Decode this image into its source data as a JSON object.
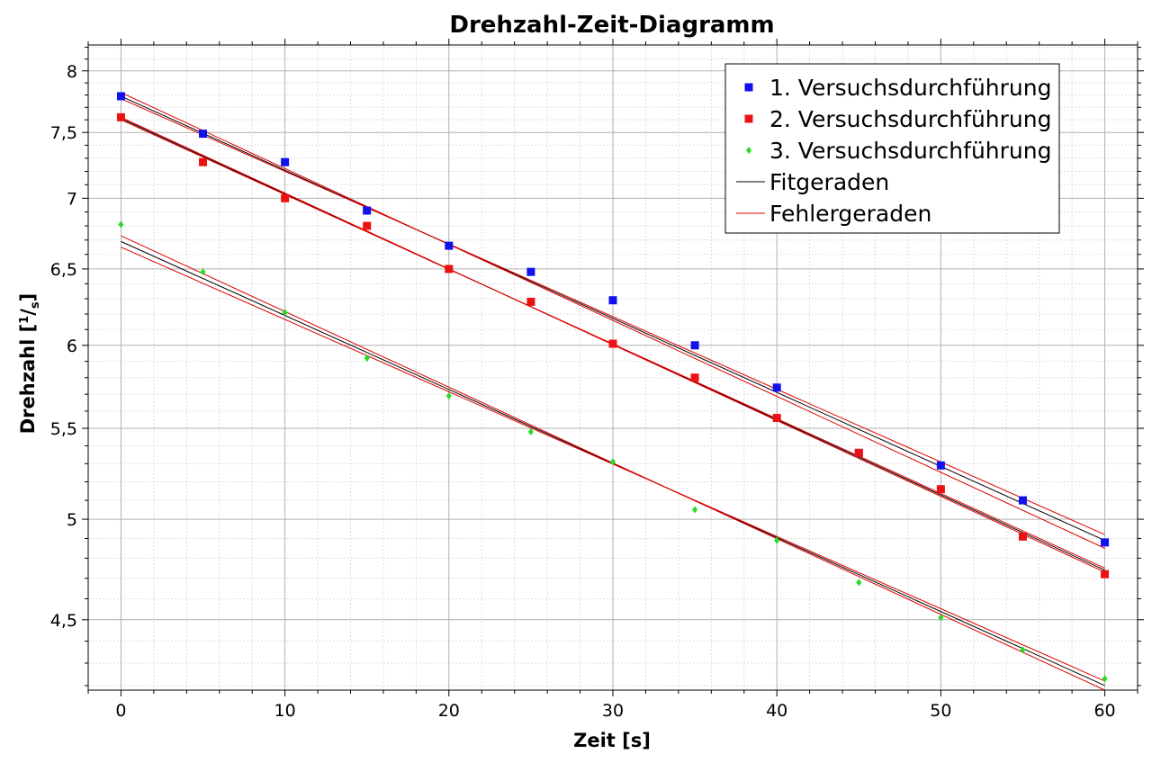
{
  "chart_data": {
    "type": "scatter",
    "title": "Drehzahl-Zeit-Diagramm",
    "xlabel": "Zeit [s]",
    "ylabel": "Drehzahl [",
    "ylabel_sup": "1",
    "ylabel_sep": "/",
    "ylabel_sub": "s",
    "ylabel_end": "]",
    "xlim": [
      -2,
      62
    ],
    "ylim": [
      4.18,
      8.22
    ],
    "yscale": "log",
    "grid": true,
    "legend_position": "top-right",
    "x_ticks": [
      0,
      10,
      20,
      30,
      40,
      50,
      60
    ],
    "x_tick_labels": [
      "0",
      "10",
      "20",
      "30",
      "40",
      "50",
      "60"
    ],
    "y_ticks": [
      4.5,
      5,
      5.5,
      6,
      6.5,
      7,
      7.5,
      8
    ],
    "y_tick_labels": [
      "4,5",
      "5",
      "5,5",
      "6",
      "6,5",
      "7",
      "7,5",
      "8"
    ],
    "x": [
      0,
      5,
      10,
      15,
      20,
      25,
      30,
      35,
      40,
      45,
      50,
      55,
      60
    ],
    "series": [
      {
        "name": "1. Versuchsdurchführung",
        "marker": "square",
        "color": "#1111ee",
        "values": [
          7.79,
          7.49,
          7.27,
          6.91,
          6.66,
          6.48,
          6.29,
          6.0,
          5.74,
          5.36,
          5.29,
          5.1,
          4.88
        ]
      },
      {
        "name": "2. Versuchsdurchführung",
        "marker": "square",
        "color": "#ee1111",
        "values": [
          7.62,
          7.27,
          7.0,
          6.8,
          6.5,
          6.28,
          6.01,
          5.8,
          5.56,
          5.36,
          5.16,
          4.91,
          4.72
        ]
      },
      {
        "name": "3. Versuchsdurchführung",
        "marker": "diamond",
        "color": "#22dd22",
        "values": [
          6.81,
          6.48,
          6.21,
          5.92,
          5.69,
          5.48,
          5.31,
          5.05,
          4.89,
          4.68,
          4.51,
          4.36,
          4.23
        ]
      }
    ],
    "lines": [
      {
        "name": "Fitgeraden",
        "color": "#000000",
        "label": true,
        "x": [
          0,
          60
        ],
        "y": [
          7.79,
          4.89
        ]
      },
      {
        "name": "Fitgeraden",
        "color": "#000000",
        "label": false,
        "x": [
          0,
          60
        ],
        "y": [
          7.61,
          4.74
        ]
      },
      {
        "name": "Fitgeraden",
        "color": "#000000",
        "label": false,
        "x": [
          0,
          60
        ],
        "y": [
          6.69,
          4.2
        ]
      },
      {
        "name": "Fehlergeraden",
        "color": "#dd0000",
        "label": true,
        "x": [
          0,
          60
        ],
        "y": [
          7.82,
          4.85
        ]
      },
      {
        "name": "Fehlergeraden",
        "color": "#dd0000",
        "label": false,
        "x": [
          0,
          60
        ],
        "y": [
          7.77,
          4.92
        ]
      },
      {
        "name": "Fehlergeraden",
        "color": "#dd0000",
        "label": false,
        "x": [
          0,
          60
        ],
        "y": [
          7.62,
          4.73
        ]
      },
      {
        "name": "Fehlergeraden",
        "color": "#dd0000",
        "label": false,
        "x": [
          0,
          60
        ],
        "y": [
          7.6,
          4.75
        ]
      },
      {
        "name": "Fehlergeraden",
        "color": "#dd0000",
        "label": false,
        "x": [
          0,
          60
        ],
        "y": [
          6.73,
          4.18
        ]
      },
      {
        "name": "Fehlergeraden",
        "color": "#dd0000",
        "label": false,
        "x": [
          0,
          60
        ],
        "y": [
          6.65,
          4.22
        ]
      }
    ]
  }
}
